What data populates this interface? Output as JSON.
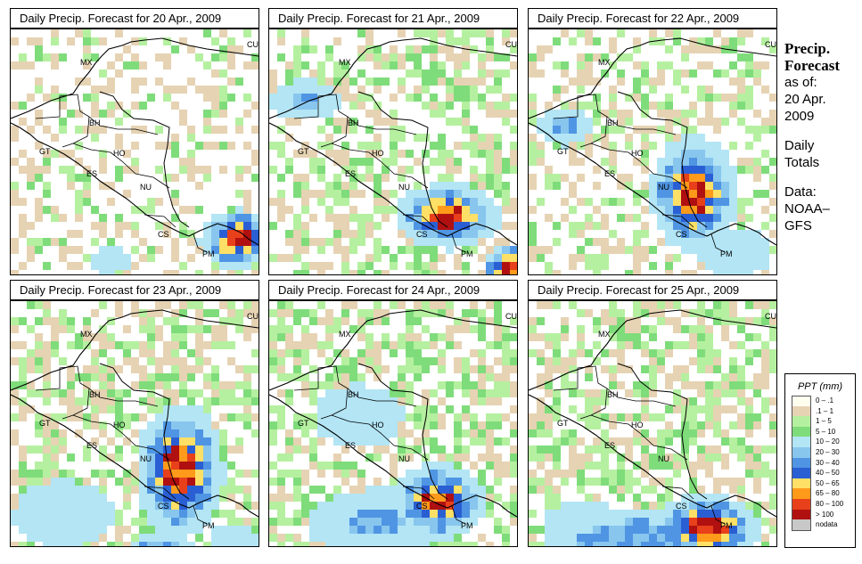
{
  "panels": [
    {
      "title": "Daily Precip. Forecast for  20 Apr., 2009",
      "key": "d20"
    },
    {
      "title": "Daily Precip. Forecast for  21 Apr., 2009",
      "key": "d21"
    },
    {
      "title": "Daily Precip. Forecast for  22 Apr., 2009",
      "key": "d22"
    },
    {
      "title": "Daily Precip. Forecast for  23 Apr., 2009",
      "key": "d23"
    },
    {
      "title": "Daily Precip. Forecast for  24 Apr., 2009",
      "key": "d24"
    },
    {
      "title": "Daily Precip. Forecast for  25 Apr., 2009",
      "key": "d25"
    }
  ],
  "map_labels": {
    "mx": "MX",
    "bh": "BH",
    "gt": "GT",
    "ho": "HO",
    "es": "ES",
    "nu": "NU",
    "cs": "CS",
    "pm": "PM",
    "cu": "CU"
  },
  "side_text": {
    "title_line1": "Precip.",
    "title_line2": "Forecast",
    "asof": "as of:",
    "date1": "20 Apr.",
    "date2": "2009",
    "daily1": "Daily",
    "daily2": "Totals",
    "data1": "Data:",
    "data2": "NOAA–",
    "data3": "GFS"
  },
  "legend": {
    "title": "PPT (mm)",
    "items": [
      {
        "label": "0 – .1",
        "color": "#fffff0"
      },
      {
        "label": ".1 – 1",
        "color": "#e6d3b3"
      },
      {
        "label": "1 – 5",
        "color": "#b5f0a0"
      },
      {
        "label": "5 – 10",
        "color": "#7fdc7a"
      },
      {
        "label": "10 – 20",
        "color": "#b3e5f5"
      },
      {
        "label": "20 – 30",
        "color": "#88c6ee"
      },
      {
        "label": "30 – 40",
        "color": "#4f95e3"
      },
      {
        "label": "40 – 50",
        "color": "#2a5fd4"
      },
      {
        "label": "50 – 65",
        "color": "#ffe066"
      },
      {
        "label": "65 – 80",
        "color": "#ff9a1a"
      },
      {
        "label": "80 – 100",
        "color": "#e8401a"
      },
      {
        "label": "> 100",
        "color": "#b01010"
      },
      {
        "label": "nodata",
        "color": "#c8c8c8"
      }
    ]
  }
}
